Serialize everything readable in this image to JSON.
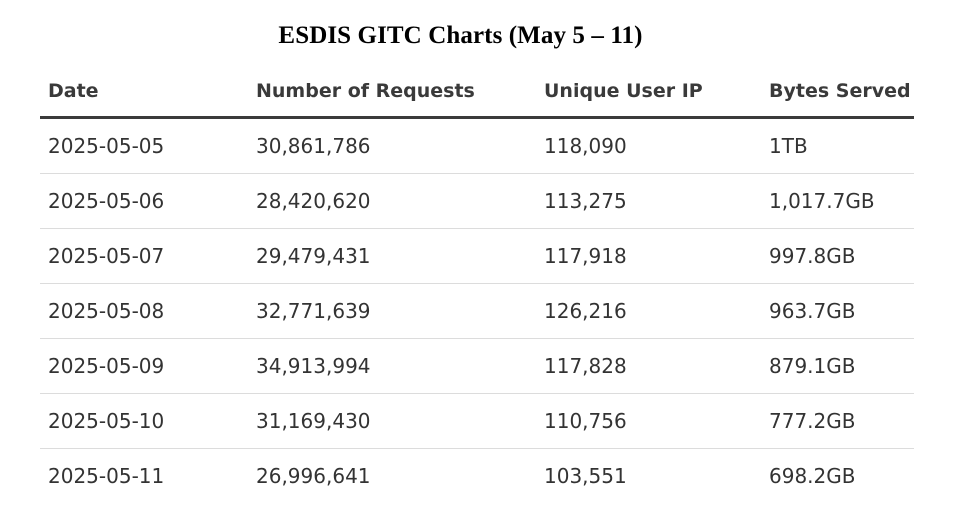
{
  "title": "ESDIS GITC Charts (May 5 – 11)",
  "chart_data": {
    "type": "table",
    "title": "ESDIS GITC Charts (May 5 – 11)",
    "columns": [
      "Date",
      "Number of Requests",
      "Unique User IP",
      "Bytes Served"
    ],
    "rows": [
      [
        "2025-05-05",
        "30,861,786",
        "118,090",
        "1TB"
      ],
      [
        "2025-05-06",
        "28,420,620",
        "113,275",
        "1,017.7GB"
      ],
      [
        "2025-05-07",
        "29,479,431",
        "117,918",
        "997.8GB"
      ],
      [
        "2025-05-08",
        "32,771,639",
        "126,216",
        "963.7GB"
      ],
      [
        "2025-05-09",
        "34,913,994",
        "117,828",
        "879.1GB"
      ],
      [
        "2025-05-10",
        "31,169,430",
        "110,756",
        "777.2GB"
      ],
      [
        "2025-05-11",
        "26,996,641",
        "103,551",
        "698.2GB"
      ]
    ]
  }
}
